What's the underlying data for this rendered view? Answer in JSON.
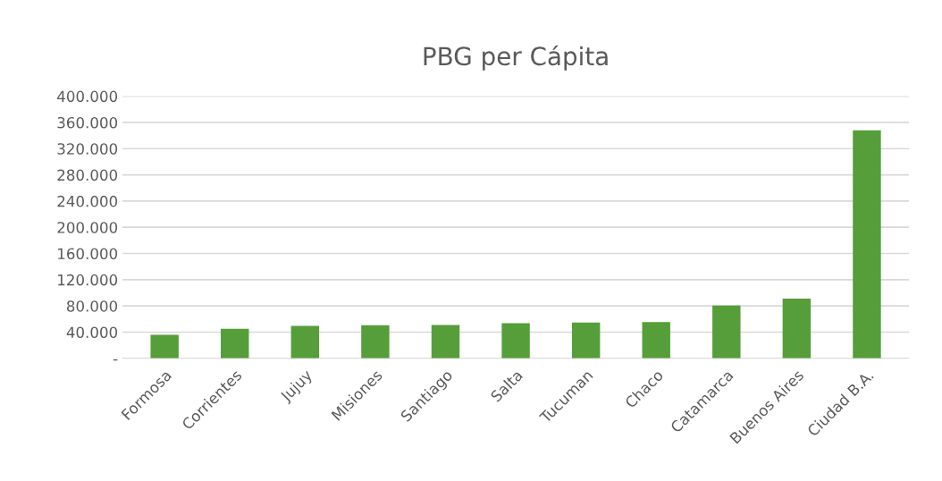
{
  "chart_data": {
    "type": "bar",
    "title": "PBG per Cápita",
    "categories": [
      "Formosa",
      "Corrientes",
      "Jujuy",
      "Misiones",
      "Santiago",
      "Salta",
      "Tucuman",
      "Chaco",
      "Catamarca",
      "Buenos Aires",
      "Ciudad B.A."
    ],
    "values": [
      36000,
      45000,
      49500,
      50500,
      51000,
      53500,
      54500,
      55500,
      80500,
      91000,
      348000
    ],
    "color": "#559e3a",
    "ylim": [
      0,
      400000
    ],
    "yticks": [
      {
        "value": 0,
        "label": "-"
      },
      {
        "value": 40000,
        "label": "40.000"
      },
      {
        "value": 80000,
        "label": "80.000"
      },
      {
        "value": 120000,
        "label": "120.000"
      },
      {
        "value": 160000,
        "label": "160.000"
      },
      {
        "value": 200000,
        "label": "200.000"
      },
      {
        "value": 240000,
        "label": "240.000"
      },
      {
        "value": 280000,
        "label": "280.000"
      },
      {
        "value": 320000,
        "label": "320.000"
      },
      {
        "value": 360000,
        "label": "360.000"
      },
      {
        "value": 400000,
        "label": "400.000"
      }
    ],
    "grid": "y"
  }
}
